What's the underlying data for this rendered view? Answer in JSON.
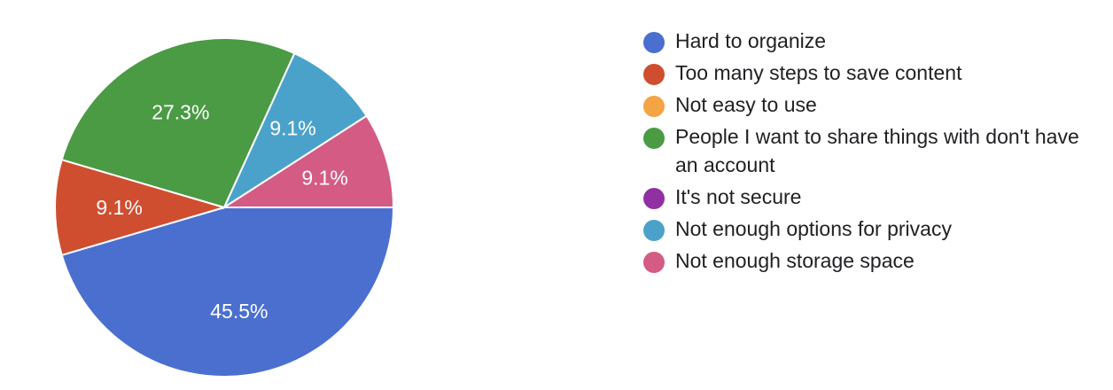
{
  "chart_data": {
    "type": "pie",
    "title": "",
    "start_angle_deg": 90,
    "direction": "clockwise",
    "legend_position": "right",
    "slices": [
      {
        "label": "Hard to organize",
        "value": 45.5,
        "display": "45.5%",
        "color": "#4a6fcf"
      },
      {
        "label": "Too many steps to save content",
        "value": 9.1,
        "display": "9.1%",
        "color": "#d04e30"
      },
      {
        "label": "Not easy to use",
        "value": 0,
        "display": "",
        "color": "#f4a443"
      },
      {
        "label": "People I want to share things with don't have an account",
        "value": 27.3,
        "display": "27.3%",
        "color": "#4b9a44"
      },
      {
        "label": "It's not secure",
        "value": 0,
        "display": "",
        "color": "#9130a3"
      },
      {
        "label": "Not enough options for privacy",
        "value": 9.1,
        "display": "9.1%",
        "color": "#4aa2cb"
      },
      {
        "label": "Not enough storage space",
        "value": 9.1,
        "display": "9.1%",
        "color": "#d45b83"
      }
    ]
  }
}
